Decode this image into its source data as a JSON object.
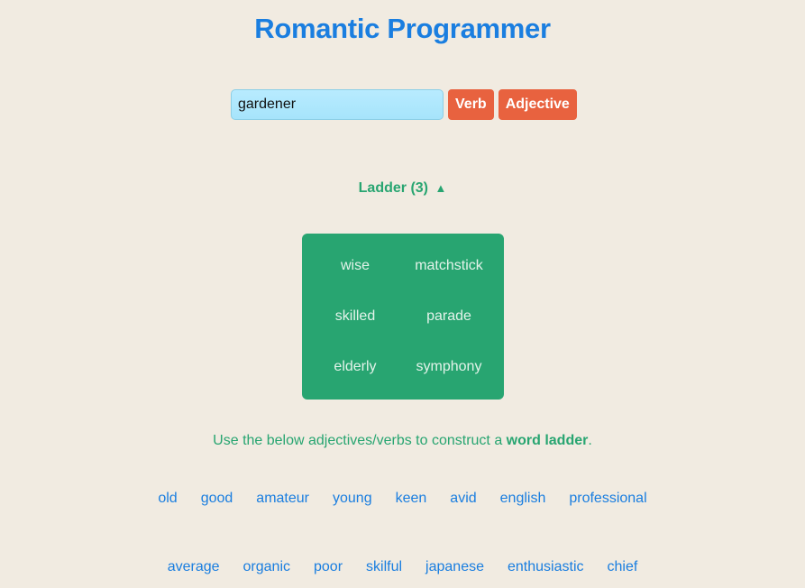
{
  "app": {
    "title": "Romantic Programmer"
  },
  "controls": {
    "input_value": "gardener",
    "verb_label": "Verb",
    "adjective_label": "Adjective"
  },
  "ladder": {
    "toggle_label": "Ladder (3)",
    "toggle_icon": "▲",
    "left_column": [
      "wise",
      "skilled",
      "elderly"
    ],
    "right_column": [
      "matchstick",
      "parade",
      "symphony"
    ]
  },
  "hint": {
    "prefix": "Use the below adjectives/verbs to construct a ",
    "emphasis": "word ladder",
    "suffix": "."
  },
  "word_rows": [
    [
      "old",
      "good",
      "amateur",
      "young",
      "keen",
      "avid",
      "english",
      "professional"
    ],
    [
      "average",
      "organic",
      "poor",
      "skilful",
      "japanese",
      "enthusiastic",
      "chief"
    ]
  ],
  "colors": {
    "background": "#f1ebe1",
    "title_blue": "#1a7ee0",
    "accent_green": "#28a571",
    "button_orange": "#e8623f",
    "input_blue": "#b8ebff"
  }
}
